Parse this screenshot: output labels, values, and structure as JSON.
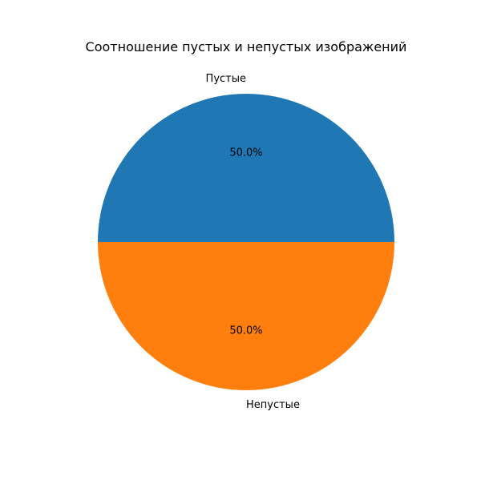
{
  "chart_data": {
    "type": "pie",
    "title": "Соотношение пустых и непустых изображений",
    "slices": [
      {
        "label": "Пустые",
        "value": 50,
        "percent_label": "50.0%",
        "color": "#1f77b4"
      },
      {
        "label": "Непустые",
        "value": 50,
        "percent_label": "50.0%",
        "color": "#ff7f0e"
      }
    ],
    "start_angle_deg": 0,
    "direction": "counterclockwise",
    "legend": "none"
  }
}
